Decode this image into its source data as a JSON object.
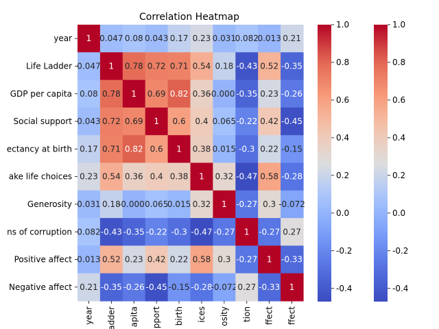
{
  "chart_data": {
    "type": "heatmap",
    "title": "Correlation Heatmap",
    "xlabel": "",
    "ylabel": "",
    "row_labels": [
      "year",
      "Life Ladder",
      "GDP per capita",
      "Social support",
      "ectancy at birth",
      "ake life choices",
      "Generosity",
      "ns of corruption",
      "Positive affect",
      "Negative affect"
    ],
    "col_labels": [
      "year",
      "adder",
      "apita",
      "pport",
      "birth",
      "ices",
      "osity",
      "tion",
      "ffect",
      "ffect"
    ],
    "values": [
      [
        1,
        0.047,
        0.08,
        0.043,
        0.17,
        0.23,
        0.031,
        0.082,
        0.013,
        0.21
      ],
      [
        0.047,
        1,
        0.78,
        0.72,
        0.71,
        0.54,
        0.18,
        -0.43,
        0.52,
        -0.35
      ],
      [
        0.08,
        0.78,
        1,
        0.69,
        0.82,
        0.36,
        -0.0007,
        -0.35,
        0.23,
        -0.26
      ],
      [
        0.043,
        0.72,
        0.69,
        1,
        0.6,
        0.4,
        0.065,
        -0.22,
        0.42,
        -0.45
      ],
      [
        0.17,
        0.71,
        0.82,
        0.6,
        1,
        0.38,
        0.015,
        -0.3,
        0.22,
        -0.15
      ],
      [
        0.23,
        0.54,
        0.36,
        0.4,
        0.38,
        1,
        0.32,
        -0.47,
        0.58,
        -0.28
      ],
      [
        0.031,
        0.18,
        -0.0007,
        0.065,
        0.015,
        0.32,
        1,
        -0.27,
        0.3,
        -0.072
      ],
      [
        0.082,
        -0.43,
        -0.35,
        -0.22,
        -0.3,
        -0.47,
        -0.27,
        1,
        -0.27,
        0.27
      ],
      [
        0.013,
        0.52,
        0.23,
        0.42,
        0.22,
        0.58,
        0.3,
        -0.27,
        1,
        -0.33
      ],
      [
        0.21,
        -0.35,
        -0.26,
        -0.45,
        -0.15,
        -0.28,
        -0.072,
        0.27,
        -0.33,
        1
      ]
    ],
    "cell_text": [
      [
        "1",
        "0.047",
        "0.08",
        "0.043",
        "0.17",
        "0.23",
        "0.031",
        "0.082",
        "0.013",
        "0.21"
      ],
      [
        "0.047",
        "1",
        "0.78",
        "0.72",
        "0.71",
        "0.54",
        "0.18",
        "-0.43",
        "0.52",
        "-0.35"
      ],
      [
        "0.08",
        "0.78",
        "1",
        "0.69",
        "0.82",
        "0.36",
        "-0.0007",
        "-0.35",
        "0.23",
        "-0.26"
      ],
      [
        "0.043",
        "0.72",
        "0.69",
        "1",
        "0.6",
        "0.4",
        "0.065",
        "-0.22",
        "0.42",
        "-0.45"
      ],
      [
        "0.17",
        "0.71",
        "0.82",
        "0.6",
        "1",
        "0.38",
        "0.015",
        "-0.3",
        "0.22",
        "-0.15"
      ],
      [
        "0.23",
        "0.54",
        "0.36",
        "0.4",
        "0.38",
        "1",
        "0.32",
        "-0.47",
        "0.58",
        "-0.28"
      ],
      [
        "0.031",
        "0.18",
        "-0.0007",
        "0.065",
        "0.015",
        "0.32",
        "1",
        "-0.27",
        "0.3",
        "-0.072"
      ],
      [
        "0.082",
        "-0.43",
        "-0.35",
        "-0.22",
        "-0.3",
        "-0.47",
        "-0.27",
        "1",
        "-0.27",
        "0.27"
      ],
      [
        "0.013",
        "0.52",
        "0.23",
        "0.42",
        "0.22",
        "0.58",
        "0.3",
        "-0.27",
        "1",
        "-0.33"
      ],
      [
        "0.21",
        "-0.35",
        "-0.26",
        "-0.45",
        "-0.15",
        "-0.28",
        "-0.072",
        "0.27",
        "-0.33",
        "1"
      ]
    ],
    "colormap": "coolwarm",
    "vmin": -0.47,
    "vmax": 1,
    "colorbar_ticks": [
      "1.0",
      "0.8",
      "0.6",
      "0.4",
      "0.2",
      "0.0",
      "-0.2",
      "-0.4"
    ],
    "colorbar_tick_values": [
      1.0,
      0.8,
      0.6,
      0.4,
      0.2,
      0.0,
      -0.2,
      -0.4
    ],
    "colorbar_count": 2,
    "grid": false,
    "legend": "colorbar-right"
  }
}
